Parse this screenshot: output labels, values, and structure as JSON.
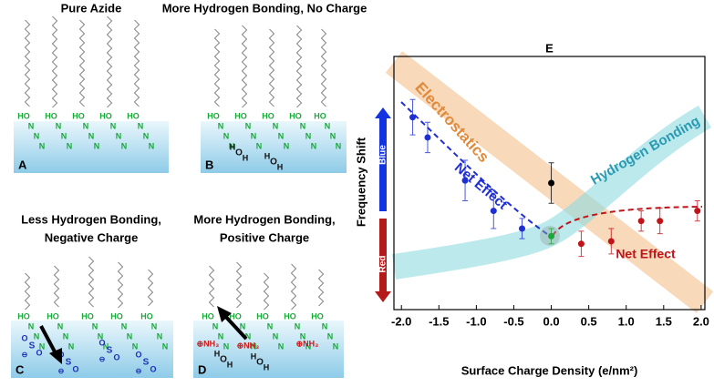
{
  "panels": [
    {
      "label": "A",
      "title": [
        "Pure Azide"
      ]
    },
    {
      "label": "B",
      "title": [
        "More Hydrogen Bonding, No Charge"
      ]
    },
    {
      "label": "C",
      "title": [
        "Less Hydrogen Bonding,",
        "Negative Charge"
      ]
    },
    {
      "label": "D",
      "title": [
        "More Hydrogen Bonding,",
        "Positive Charge"
      ]
    }
  ],
  "atoms": {
    "hydroxyl": "HO",
    "nitrogen": "N",
    "oxygen": "O",
    "hydrogen": "H",
    "sulfur": "S",
    "anion": "⊖",
    "ammonium": "⊕NH₃"
  },
  "chart_data": {
    "type": "scatter",
    "title": "E",
    "xlabel": "Surface Charge Density (e/nm²)",
    "ylabel": "Frequency Shift",
    "xlim": [
      -2.1,
      2.05
    ],
    "ylim": [
      0,
      10
    ],
    "xticks": [
      {
        "value": -2,
        "label": "-2.0"
      },
      {
        "value": -1.5,
        "label": "-1.5"
      },
      {
        "value": -1,
        "label": "-1.0"
      },
      {
        "value": -0.5,
        "label": "-0.5"
      },
      {
        "value": 0,
        "label": "0.0"
      },
      {
        "value": 0.5,
        "label": "0.5"
      },
      {
        "value": 1,
        "label": "1.0"
      },
      {
        "value": 1.5,
        "label": "1.5"
      },
      {
        "value": 2,
        "label": "2.0"
      }
    ],
    "series": [
      {
        "color": "#1f2fd1",
        "x": [
          -1.85,
          -1.65,
          -1.15,
          -0.77,
          -0.39
        ],
        "values": [
          7.6,
          6.8,
          5.1,
          3.9,
          3.2
        ],
        "errors": [
          0.7,
          0.6,
          0.8,
          0.7,
          0.4
        ]
      },
      {
        "color": "#000000",
        "x": [
          0
        ],
        "values": [
          5.0
        ],
        "errors": [
          0.8
        ]
      },
      {
        "color": "#1aa83a",
        "x": [
          0
        ],
        "values": [
          2.9
        ],
        "errors": [
          0.3
        ]
      },
      {
        "color": "#c0141a",
        "x": [
          0.4,
          0.8,
          1.2,
          1.45,
          1.95
        ],
        "values": [
          2.6,
          2.7,
          3.5,
          3.5,
          3.9
        ],
        "errors": [
          0.5,
          0.5,
          0.4,
          0.5,
          0.4
        ]
      }
    ],
    "annotations": [
      {
        "text": "Electrostatics",
        "color": "#e08a3c"
      },
      {
        "text": "Hydrogen Bonding",
        "color": "#2a9ab3"
      },
      {
        "text": "Net Effect",
        "color": "#1f2fd1"
      },
      {
        "text": "Net Effect",
        "color": "#c0141a"
      }
    ],
    "direction_labels": [
      "Blue",
      "Red"
    ]
  }
}
